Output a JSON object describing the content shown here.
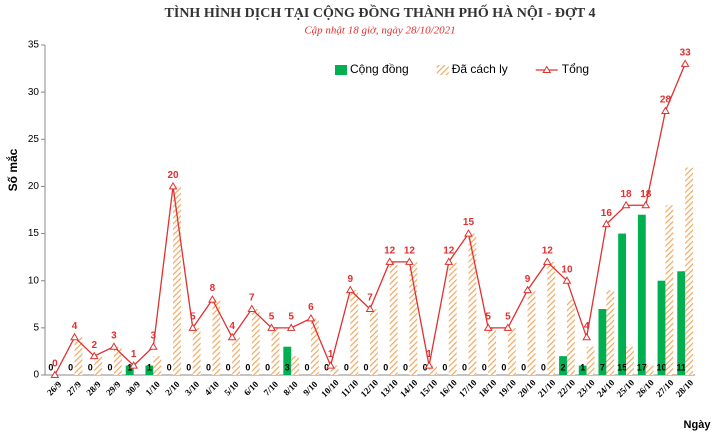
{
  "chart_data": {
    "type": "bar-line",
    "title": "TÌNH HÌNH DỊCH TẠI CỘNG ĐỒNG THÀNH PHỐ HÀ NỘI - ĐỢT 4",
    "subtitle": "Cập nhật 18 giờ, ngày 28/10/2021",
    "y_label": "Số mắc",
    "x_label": "Ngày",
    "categories": [
      "26/9",
      "27/9",
      "28/9",
      "29/9",
      "30/9",
      "1/10",
      "2/10",
      "3/10",
      "4/10",
      "5/10",
      "6/10",
      "7/10",
      "8/10",
      "9/10",
      "10/10",
      "11/10",
      "12/10",
      "13/10",
      "14/10",
      "15/10",
      "16/10",
      "17/10",
      "18/10",
      "19/10",
      "20/10",
      "21/10",
      "22/10",
      "23/10",
      "24/10",
      "25/10",
      "26/10",
      "27/10",
      "28/10"
    ],
    "series": [
      {
        "name": "Cộng đồng",
        "kind": "bar",
        "color": "#00b050",
        "values": [
          0,
          0,
          0,
          0,
          1,
          1,
          0,
          0,
          0,
          0,
          0,
          0,
          3,
          0,
          0,
          0,
          0,
          0,
          0,
          0,
          0,
          0,
          0,
          0,
          0,
          0,
          2,
          1,
          7,
          15,
          17,
          10,
          11
        ]
      },
      {
        "name": "Đã cách ly",
        "kind": "hatched-bar",
        "color": "#f0a860",
        "values": [
          0,
          4,
          2,
          3,
          0,
          2,
          20,
          5,
          8,
          4,
          7,
          5,
          2,
          6,
          1,
          9,
          7,
          12,
          12,
          1,
          12,
          15,
          5,
          5,
          9,
          12,
          8,
          3,
          9,
          3,
          1,
          18,
          22
        ]
      },
      {
        "name": "Tổng",
        "kind": "line",
        "color": "#e03030",
        "values": [
          0,
          4,
          2,
          3,
          1,
          3,
          20,
          5,
          8,
          4,
          7,
          5,
          5,
          6,
          1,
          9,
          7,
          12,
          12,
          1,
          12,
          15,
          5,
          5,
          9,
          12,
          10,
          4,
          16,
          18,
          18,
          28,
          33
        ]
      }
    ],
    "ylim": [
      0,
      35
    ],
    "yticks": [
      0,
      5,
      10,
      15,
      20,
      25,
      30,
      35
    ],
    "legend": "top-right"
  }
}
